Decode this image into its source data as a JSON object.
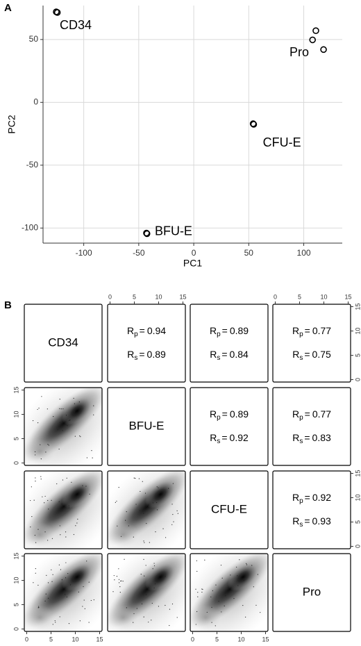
{
  "panel_a": {
    "chart_data": {
      "type": "scatter",
      "panel_label": "A",
      "x_label": "PC1",
      "y_label": "PC2",
      "xlim": [
        -137,
        135
      ],
      "ylim": [
        -112,
        77
      ],
      "xticks": [
        -100,
        -50,
        0,
        50,
        100
      ],
      "yticks": [
        -100,
        -50,
        0,
        50
      ],
      "grid": true,
      "series": [
        {
          "name": "CD34",
          "color": "#000000",
          "x": [
            -125,
            -124
          ],
          "y": [
            72,
            71.5
          ]
        },
        {
          "name": "BFU-E",
          "color": "#000000",
          "x": [
            -43,
            -42.5
          ],
          "y": [
            -104,
            -104.5
          ]
        },
        {
          "name": "CFU-E",
          "color": "#000000",
          "x": [
            54,
            54.5
          ],
          "y": [
            -17,
            -17.5
          ]
        },
        {
          "name": "Pro",
          "color": "#000000",
          "x": [
            111,
            108,
            118
          ],
          "y": [
            57,
            49.7,
            42
          ]
        }
      ]
    }
  },
  "panel_b": {
    "panel_label": "B",
    "samples": [
      "CD34",
      "BFU-E",
      "CFU-E",
      "Pro"
    ],
    "lim": [
      -0.5,
      15.5
    ],
    "ticks": [
      0,
      5,
      10,
      15
    ],
    "symbols": {
      "r": "R",
      "p": "p",
      "s": "s",
      "eq": "="
    },
    "correlations": [
      {
        "row": 0,
        "col": 1,
        "rp": 0.94,
        "rs": 0.89
      },
      {
        "row": 0,
        "col": 2,
        "rp": 0.89,
        "rs": 0.84
      },
      {
        "row": 0,
        "col": 3,
        "rp": 0.77,
        "rs": 0.75
      },
      {
        "row": 1,
        "col": 2,
        "rp": 0.89,
        "rs": 0.92
      },
      {
        "row": 1,
        "col": 3,
        "rp": 0.77,
        "rs": 0.83
      },
      {
        "row": 2,
        "col": 3,
        "rp": 0.92,
        "rs": 0.93
      }
    ]
  }
}
